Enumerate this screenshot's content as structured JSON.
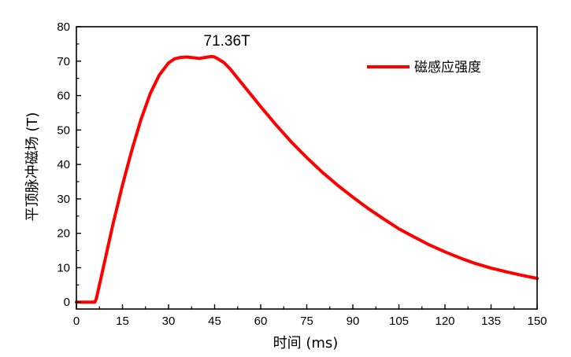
{
  "chart_data": {
    "type": "line",
    "title": "",
    "xlabel": "时间 (ms)",
    "ylabel": "平顶脉冲磁场 (T)",
    "xlim": [
      0,
      150
    ],
    "ylim": [
      -2,
      80
    ],
    "xticks": [
      0,
      15,
      30,
      45,
      60,
      75,
      90,
      105,
      120,
      135,
      150
    ],
    "yticks": [
      0,
      10,
      20,
      30,
      40,
      50,
      60,
      70,
      80
    ],
    "grid": false,
    "legend_position": "top-right",
    "annotation": {
      "text": "71.36T",
      "x": 49,
      "y": 74.5
    },
    "series": [
      {
        "name": "磁感应强度",
        "color": "#ff0000",
        "x": [
          0,
          6,
          6.5,
          8,
          10,
          12,
          15,
          18,
          21,
          24,
          27,
          30,
          32,
          34,
          36,
          38,
          40,
          42,
          44,
          45,
          46,
          48,
          50,
          55,
          60,
          65,
          70,
          75,
          80,
          85,
          90,
          95,
          100,
          105,
          110,
          115,
          120,
          125,
          130,
          135,
          140,
          145,
          150
        ],
        "y": [
          0,
          0,
          1,
          7,
          15,
          23,
          34,
          44,
          53,
          60.5,
          66,
          69.5,
          70.7,
          71.1,
          71.2,
          71.0,
          70.8,
          71.1,
          71.36,
          71.2,
          70.7,
          69.6,
          67.8,
          62.3,
          56.8,
          51.5,
          46.5,
          42.0,
          37.8,
          34.0,
          30.5,
          27.2,
          24.2,
          21.3,
          18.9,
          16.6,
          14.6,
          12.8,
          11.2,
          9.9,
          8.8,
          7.8,
          6.9
        ]
      }
    ]
  }
}
